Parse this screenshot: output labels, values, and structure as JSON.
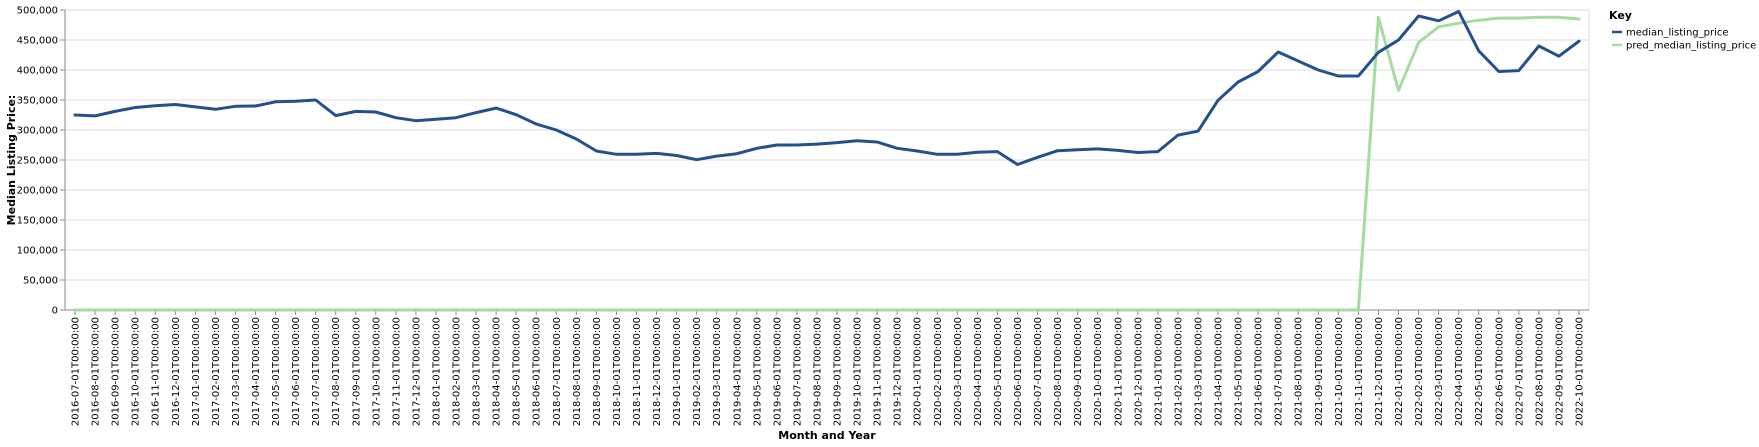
{
  "chart_data": {
    "type": "line",
    "xlabel": "Month and Year",
    "ylabel": "Median Listing Price:",
    "ylim": [
      0,
      500000
    ],
    "y_ticks": [
      0,
      50000,
      100000,
      150000,
      200000,
      250000,
      300000,
      350000,
      400000,
      450000,
      500000
    ],
    "y_tick_labels": [
      "0",
      "50,000",
      "100,000",
      "150,000",
      "200,000",
      "250,000",
      "300,000",
      "350,000",
      "400,000",
      "450,000",
      "500,000"
    ],
    "grid": true,
    "legend": {
      "title": "Key",
      "placement": "top-right"
    },
    "x": [
      "2016-07-01T00:00:00",
      "2016-08-01T00:00:00",
      "2016-09-01T00:00:00",
      "2016-10-01T00:00:00",
      "2016-11-01T00:00:00",
      "2016-12-01T00:00:00",
      "2017-01-01T00:00:00",
      "2017-02-01T00:00:00",
      "2017-03-01T00:00:00",
      "2017-04-01T00:00:00",
      "2017-05-01T00:00:00",
      "2017-06-01T00:00:00",
      "2017-07-01T00:00:00",
      "2017-08-01T00:00:00",
      "2017-09-01T00:00:00",
      "2017-10-01T00:00:00",
      "2017-11-01T00:00:00",
      "2017-12-01T00:00:00",
      "2018-01-01T00:00:00",
      "2018-02-01T00:00:00",
      "2018-03-01T00:00:00",
      "2018-04-01T00:00:00",
      "2018-05-01T00:00:00",
      "2018-06-01T00:00:00",
      "2018-07-01T00:00:00",
      "2018-08-01T00:00:00",
      "2018-09-01T00:00:00",
      "2018-10-01T00:00:00",
      "2018-11-01T00:00:00",
      "2018-12-01T00:00:00",
      "2019-01-01T00:00:00",
      "2019-02-01T00:00:00",
      "2019-03-01T00:00:00",
      "2019-04-01T00:00:00",
      "2019-05-01T00:00:00",
      "2019-06-01T00:00:00",
      "2019-07-01T00:00:00",
      "2019-08-01T00:00:00",
      "2019-09-01T00:00:00",
      "2019-10-01T00:00:00",
      "2019-11-01T00:00:00",
      "2019-12-01T00:00:00",
      "2020-01-01T00:00:00",
      "2020-02-01T00:00:00",
      "2020-03-01T00:00:00",
      "2020-04-01T00:00:00",
      "2020-05-01T00:00:00",
      "2020-06-01T00:00:00",
      "2020-07-01T00:00:00",
      "2020-08-01T00:00:00",
      "2020-09-01T00:00:00",
      "2020-10-01T00:00:00",
      "2020-11-01T00:00:00",
      "2020-12-01T00:00:00",
      "2021-01-01T00:00:00",
      "2021-02-01T00:00:00",
      "2021-03-01T00:00:00",
      "2021-04-01T00:00:00",
      "2021-05-01T00:00:00",
      "2021-06-01T00:00:00",
      "2021-07-01T00:00:00",
      "2021-08-01T00:00:00",
      "2021-09-01T00:00:00",
      "2021-10-01T00:00:00",
      "2021-11-01T00:00:00",
      "2021-12-01T00:00:00",
      "2022-01-01T00:00:00",
      "2022-02-01T00:00:00",
      "2022-03-01T00:00:00",
      "2022-04-01T00:00:00",
      "2022-05-01T00:00:00",
      "2022-06-01T00:00:00",
      "2022-07-01T00:00:00",
      "2022-08-01T00:00:00",
      "2022-09-01T00:00:00",
      "2022-10-01T00:00:00"
    ],
    "series": [
      {
        "name": "median_listing_price",
        "color": "#24508f",
        "values": [
          325000,
          323500,
          331000,
          337500,
          340500,
          342500,
          338500,
          334500,
          339500,
          340000,
          347000,
          348000,
          350000,
          324000,
          331000,
          330000,
          320500,
          315500,
          318000,
          320500,
          329000,
          336500,
          325500,
          310000,
          299999,
          285000,
          265000,
          259500,
          259500,
          261000,
          257500,
          250500,
          256500,
          260500,
          269500,
          275000,
          275000,
          276500,
          279000,
          282000,
          280000,
          269500,
          265000,
          259500,
          259500,
          263000,
          264000,
          242500,
          254500,
          265500,
          267000,
          268500,
          266000,
          262500,
          264000,
          291500,
          298000,
          349500,
          380000,
          397500,
          430000,
          415000,
          400000,
          390000,
          390000,
          429500,
          450000,
          490000,
          482000,
          497500,
          432000,
          397500,
          399000,
          440000,
          423000,
          448000
        ]
      },
      {
        "name": "pred_median_listing_price",
        "color": "#a6dba0",
        "values": [
          0,
          0,
          0,
          0,
          0,
          0,
          0,
          0,
          0,
          0,
          0,
          0,
          0,
          0,
          0,
          0,
          0,
          0,
          0,
          0,
          0,
          0,
          0,
          0,
          0,
          0,
          0,
          0,
          0,
          0,
          0,
          0,
          0,
          0,
          0,
          0,
          0,
          0,
          0,
          0,
          0,
          0,
          0,
          0,
          0,
          0,
          0,
          0,
          0,
          0,
          0,
          0,
          0,
          0,
          0,
          0,
          0,
          0,
          0,
          0,
          0,
          0,
          0,
          0,
          0,
          487500,
          366000,
          446000,
          472000,
          478000,
          483000,
          486500,
          486500,
          488000,
          488000,
          485000
        ]
      }
    ]
  }
}
